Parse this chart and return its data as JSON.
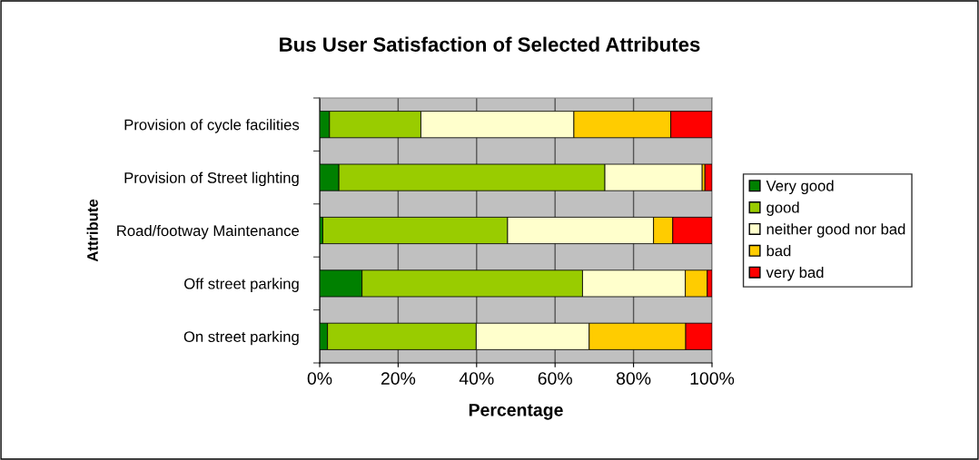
{
  "chart_data": {
    "type": "bar",
    "orientation": "horizontal",
    "stacked": true,
    "title": "Bus User Satisfaction of Selected Attributes",
    "xlabel": "Percentage",
    "ylabel": "Attribute",
    "categories": [
      "Provision of cycle facilities",
      "Provision of Street lighting",
      "Road/footway Maintenance",
      "Off street parking",
      "On street parking"
    ],
    "series": [
      {
        "name": "Very good",
        "color": "#008000",
        "values": [
          2.5,
          4.9,
          0.8,
          10.8,
          2.0
        ]
      },
      {
        "name": "good",
        "color": "#99cc00",
        "values": [
          23.3,
          67.8,
          47.1,
          56.2,
          37.9
        ]
      },
      {
        "name": "neither good nor bad",
        "color": "#ffffcc",
        "values": [
          39.0,
          24.8,
          37.2,
          26.2,
          28.8
        ]
      },
      {
        "name": "bad",
        "color": "#ffcc00",
        "values": [
          24.7,
          0.7,
          4.9,
          5.6,
          24.6
        ]
      },
      {
        "name": "very bad",
        "color": "#ff0000",
        "values": [
          10.5,
          1.8,
          10.0,
          1.2,
          6.7
        ]
      }
    ],
    "xlim": [
      0,
      100
    ],
    "xticks": [
      {
        "value": 0,
        "label": "0%"
      },
      {
        "value": 20,
        "label": "20%"
      },
      {
        "value": 40,
        "label": "40%"
      },
      {
        "value": 60,
        "label": "60%"
      },
      {
        "value": 80,
        "label": "80%"
      },
      {
        "value": 100,
        "label": "100%"
      }
    ],
    "grid": "x",
    "legend": "right"
  }
}
